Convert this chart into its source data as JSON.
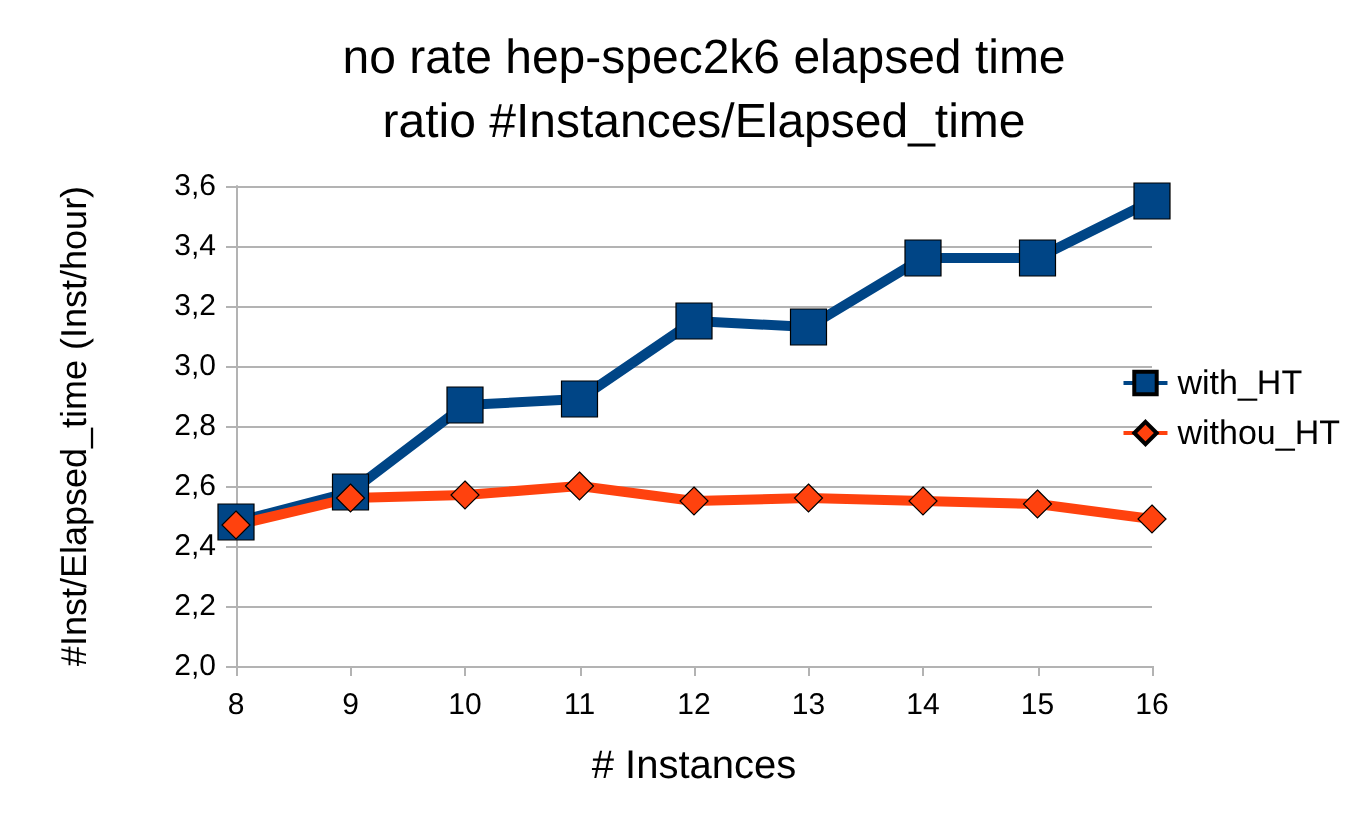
{
  "chart_data": {
    "type": "line",
    "title": "no rate hep-spec2k6 elapsed time\nratio #Instances/Elapsed_time",
    "xlabel": "# Instances",
    "ylabel": "#Inst/Elapsed_time (Inst/hour)",
    "x": [
      8,
      9,
      10,
      11,
      12,
      13,
      14,
      15,
      16
    ],
    "xlim": [
      8,
      16
    ],
    "xticks": [
      8,
      9,
      10,
      11,
      12,
      13,
      14,
      15,
      16
    ],
    "ylim": [
      2.0,
      3.6
    ],
    "yticks": [
      {
        "value": 2.0,
        "label": "2,0"
      },
      {
        "value": 2.2,
        "label": "2,2"
      },
      {
        "value": 2.4,
        "label": "2,4"
      },
      {
        "value": 2.6,
        "label": "2,6"
      },
      {
        "value": 2.8,
        "label": "2,8"
      },
      {
        "value": 3.0,
        "label": "3,0"
      },
      {
        "value": 3.2,
        "label": "3,2"
      },
      {
        "value": 3.4,
        "label": "3,4"
      },
      {
        "value": 3.6,
        "label": "3,6"
      }
    ],
    "grid": "y",
    "legend": "right",
    "line_style": "solid",
    "series": [
      {
        "name": "with_HT",
        "color": "#004586",
        "marker": "square",
        "values": [
          2.48,
          2.58,
          2.87,
          2.89,
          3.15,
          3.13,
          3.36,
          3.36,
          3.55
        ]
      },
      {
        "name": "withou_HT",
        "color": "#ff420e",
        "marker": "diamond",
        "values": [
          2.47,
          2.56,
          2.57,
          2.6,
          2.55,
          2.56,
          2.55,
          2.54,
          2.49
        ]
      }
    ]
  }
}
